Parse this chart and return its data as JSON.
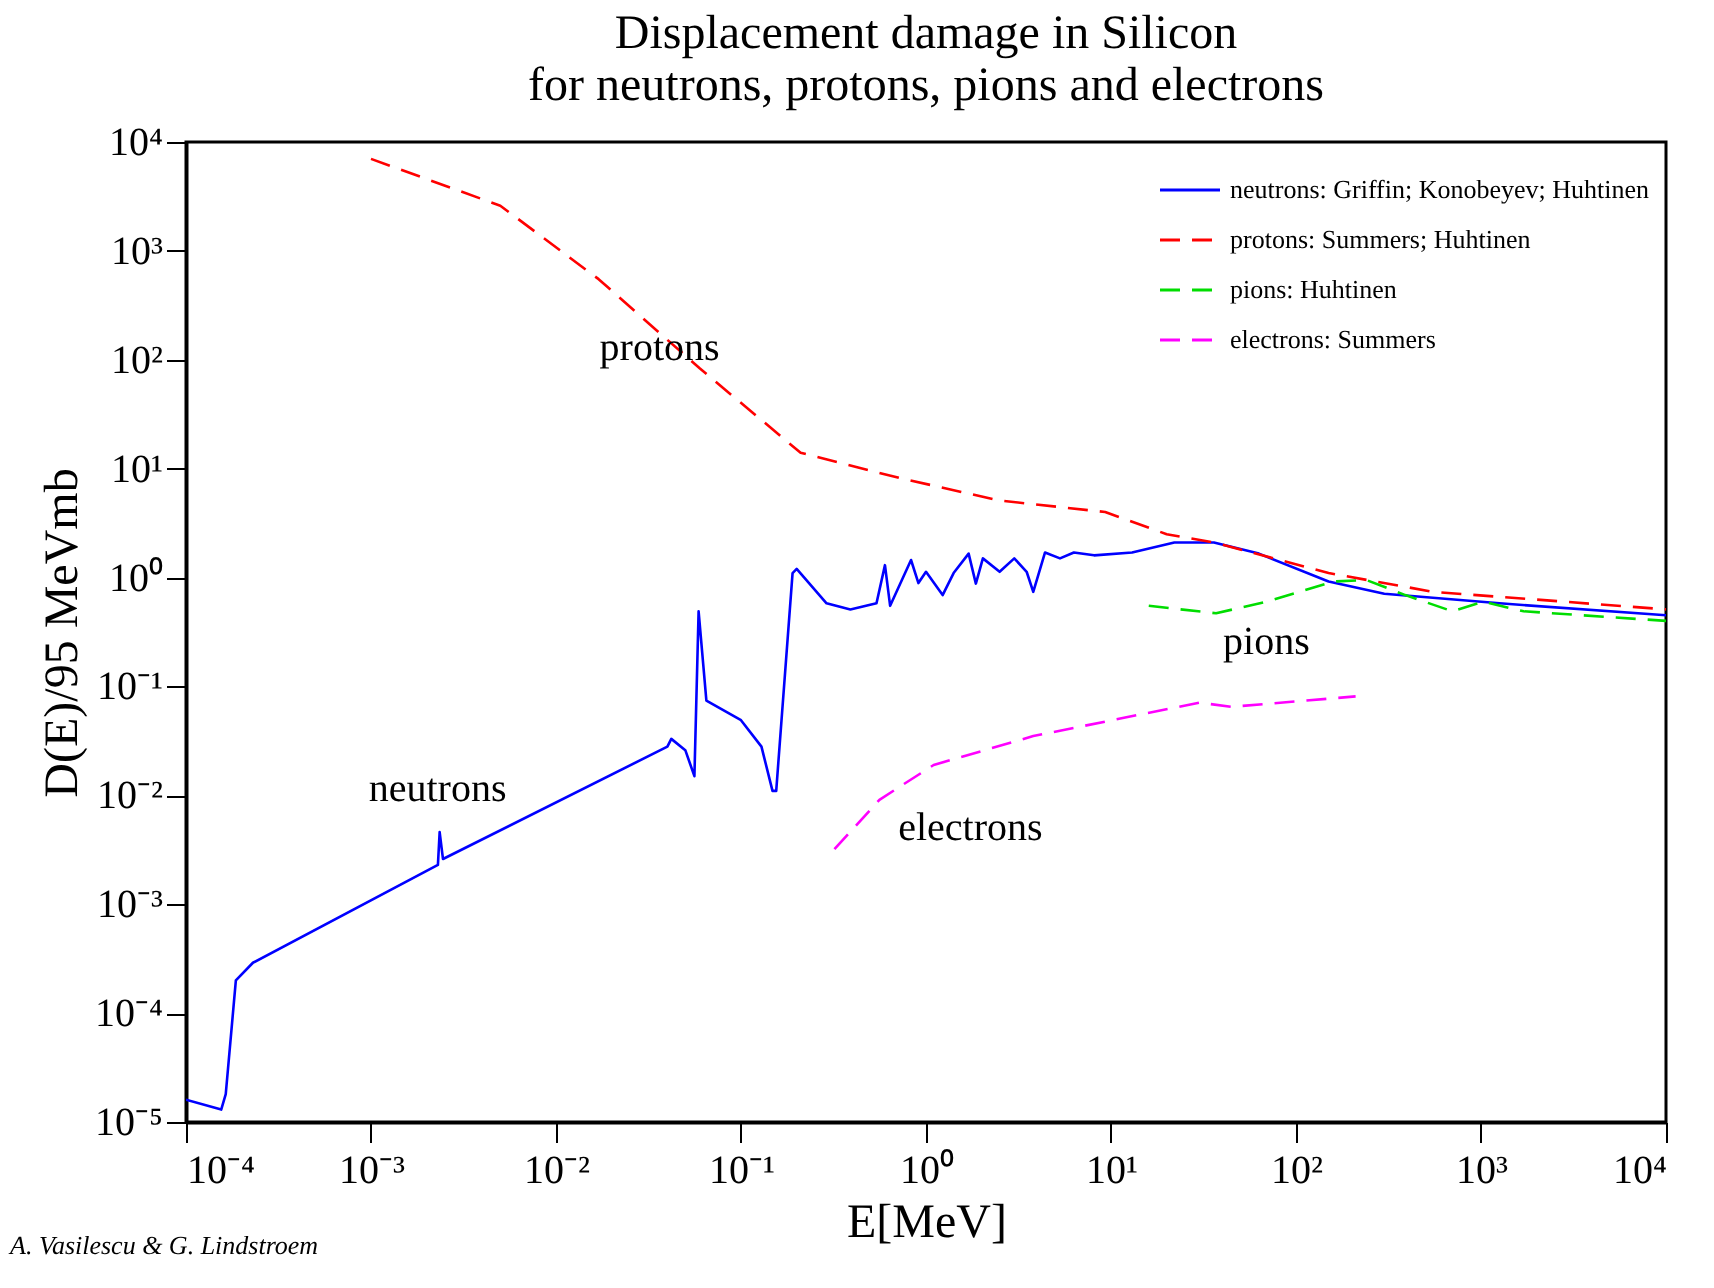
{
  "chart_data": {
    "type": "line",
    "title": "Displacement damage in Silicon",
    "subtitle": "for neutrons, protons, pions and electrons",
    "xlabel": "E[MeV]",
    "ylabel": "D(E)/95 MeVmb",
    "log": "xy",
    "grid": false,
    "legend": "top right",
    "xlim": [
      0.0001,
      10000
    ],
    "ylim": [
      1e-05,
      10000
    ],
    "xticks": [
      {
        "value": 0.0001,
        "label": "10⁻⁴"
      },
      {
        "value": 0.001,
        "label": "10⁻³"
      },
      {
        "value": 0.01,
        "label": "10⁻²"
      },
      {
        "value": 0.1,
        "label": "10⁻¹"
      },
      {
        "value": 1,
        "label": "10⁰"
      },
      {
        "value": 10,
        "label": "10¹"
      },
      {
        "value": 100,
        "label": "10²"
      },
      {
        "value": 1000,
        "label": "10³"
      },
      {
        "value": 10000,
        "label": "10⁴"
      }
    ],
    "yticks": [
      {
        "value": 1e-05,
        "label": "10⁻⁵"
      },
      {
        "value": 0.0001,
        "label": "10⁻⁴"
      },
      {
        "value": 0.001,
        "label": "10⁻³"
      },
      {
        "value": 0.01,
        "label": "10⁻²"
      },
      {
        "value": 0.1,
        "label": "10⁻¹"
      },
      {
        "value": 1,
        "label": "10⁰"
      },
      {
        "value": 10,
        "label": "10¹"
      },
      {
        "value": 100,
        "label": "10²"
      },
      {
        "value": 1000,
        "label": "10³"
      },
      {
        "value": 10000,
        "label": "10⁴"
      }
    ],
    "series": [
      {
        "name": "neutrons: Griffin; Konobeyev; Huhtinen",
        "color": "#0000ff",
        "line_style": "solid",
        "x": [
          0.0001,
          0.000155,
          0.000164,
          0.000186,
          0.00023,
          0.0023,
          0.00235,
          0.00245,
          0.04,
          0.042,
          0.05,
          0.056,
          0.059,
          0.065,
          0.1,
          0.129,
          0.148,
          0.155,
          0.19,
          0.2,
          0.29,
          0.39,
          0.54,
          0.6,
          0.64,
          0.83,
          0.91,
          1.0,
          1.23,
          1.41,
          1.7,
          1.86,
          2.03,
          2.5,
          3.0,
          3.5,
          3.8,
          4.4,
          5.3,
          6.3,
          8.1,
          13,
          22,
          36,
          63,
          150,
          300,
          1260,
          10000
        ],
        "values": [
          1.6e-05,
          1.3e-05,
          1.8e-05,
          0.0002,
          0.00029,
          0.0023,
          0.0046,
          0.0026,
          0.028,
          0.033,
          0.026,
          0.015,
          0.49,
          0.074,
          0.049,
          0.028,
          0.011,
          0.011,
          1.1,
          1.2,
          0.58,
          0.51,
          0.58,
          1.3,
          0.55,
          1.45,
          0.89,
          1.13,
          0.69,
          1.1,
          1.66,
          0.88,
          1.5,
          1.13,
          1.5,
          1.13,
          0.74,
          1.7,
          1.5,
          1.7,
          1.6,
          1.7,
          2.1,
          2.1,
          1.66,
          0.92,
          0.71,
          0.58,
          0.45
        ]
      },
      {
        "name": "protons: Summers; Huhtinen",
        "color": "#ff0000",
        "line_style": "dashed",
        "x": [
          0.001,
          0.005,
          0.017,
          0.06,
          0.21,
          0.72,
          2.5,
          9.3,
          20,
          36,
          150,
          550,
          10000
        ],
        "values": [
          7000,
          2600,
          550,
          83,
          14,
          8.2,
          5.1,
          4.0,
          2.5,
          2.1,
          1.1,
          0.74,
          0.51
        ]
      },
      {
        "name": "pions: Huhtinen",
        "color": "#00dd00",
        "line_style": "dashed",
        "x": [
          16,
          37,
          69,
          160,
          240,
          390,
          700,
          1030,
          1700,
          10000
        ],
        "values": [
          0.55,
          0.47,
          0.6,
          0.92,
          0.95,
          0.69,
          0.49,
          0.6,
          0.49,
          0.4
        ]
      },
      {
        "name": "electrons: Summers",
        "color": "#ff00ff",
        "line_style": "dashed",
        "x": [
          0.32,
          0.56,
          1.1,
          3.8,
          30,
          45,
          210
        ],
        "values": [
          0.0032,
          0.0091,
          0.019,
          0.035,
          0.071,
          0.065,
          0.081
        ]
      }
    ],
    "annotations": [
      "protons",
      "neutrons",
      "pions",
      "electrons",
      "A. Vasilescu & G. Lindstroem"
    ]
  }
}
